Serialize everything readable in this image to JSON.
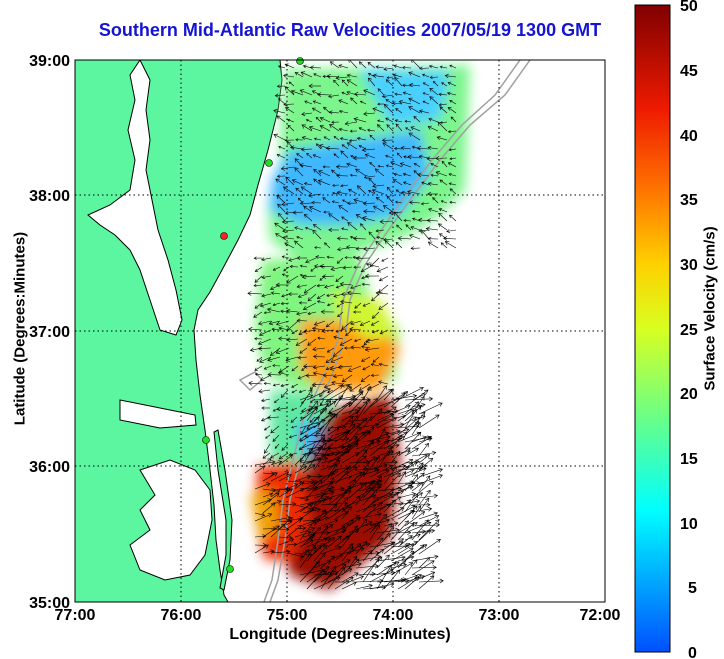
{
  "title": "Southern Mid-Atlantic Raw Velocities 2007/05/19 1300 GMT",
  "xlabel": "Longitude (Degrees:Minutes)",
  "ylabel": "Latitude (Degrees:Minutes)",
  "colorbar": {
    "label": "Surface Velocity (cm/s)",
    "range": [
      0,
      50
    ],
    "ticks": [
      "50",
      "45",
      "40",
      "35",
      "30",
      "25",
      "20",
      "15",
      "10",
      "5",
      "0"
    ],
    "colormap": "jet"
  },
  "map": {
    "lon_range": [
      -77,
      -72
    ],
    "lat_range": [
      35,
      39
    ],
    "x_tick_labels": [
      "77:00",
      "76:00",
      "75:00",
      "74:00",
      "73:00",
      "72:00"
    ],
    "y_tick_labels": [
      "39:00",
      "38:00",
      "37:00",
      "36:00",
      "35:00"
    ],
    "grid": "dotted",
    "colors": {
      "land": "#5cf5a0",
      "water": "#ffffff",
      "coastline": "#000000",
      "bathymetry": "#a0a0a0",
      "station_marker": "#22dd22",
      "station_marker_active": "#ff2222",
      "arrow": "#000000"
    }
  }
}
